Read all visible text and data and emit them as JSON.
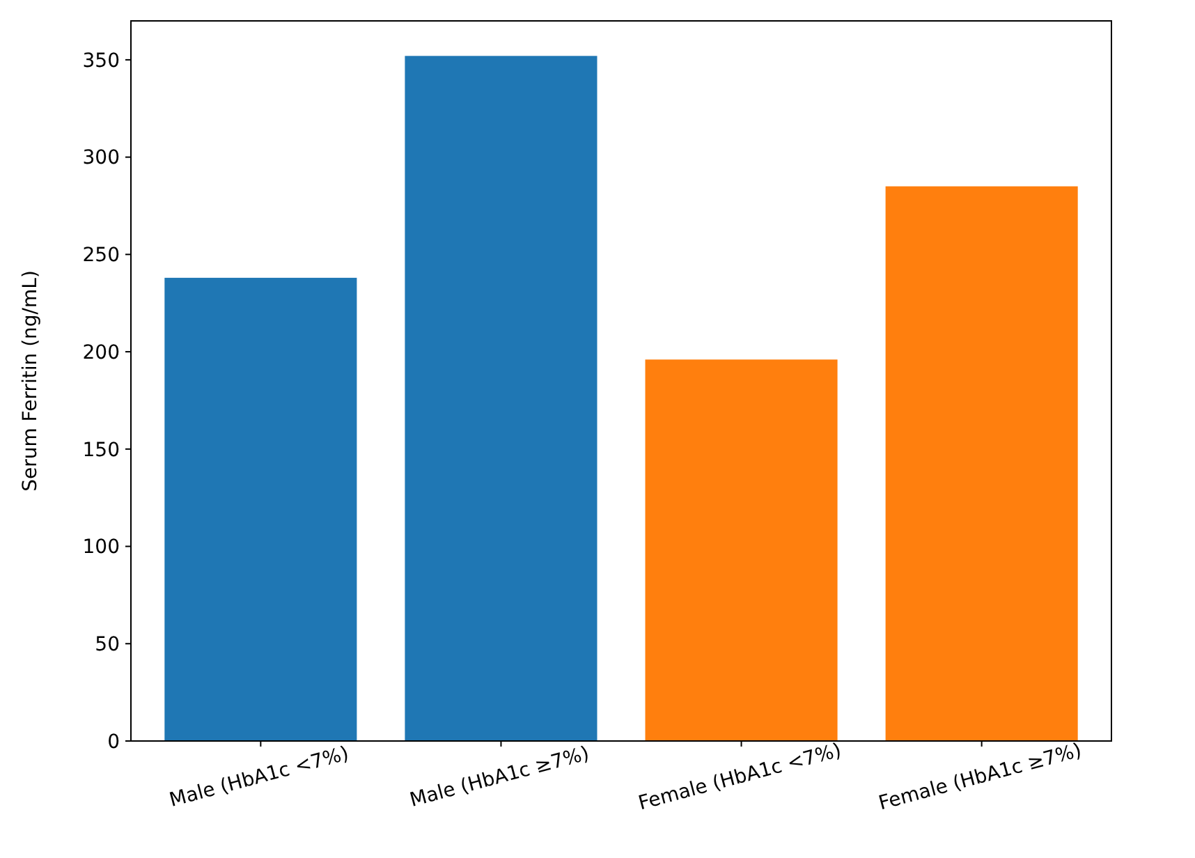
{
  "chart_data": {
    "type": "bar",
    "ylabel": "Serum Ferritin (ng/mL)",
    "categories": [
      "Male (HbA1c <7%)",
      "Male (HbA1c ≥7%)",
      "Female (HbA1c <7%)",
      "Female (HbA1c ≥7%)"
    ],
    "values": [
      238,
      352,
      196,
      285
    ],
    "colors": [
      "#1f77b4",
      "#1f77b4",
      "#ff7f0e",
      "#ff7f0e"
    ],
    "ylim": [
      0,
      370
    ],
    "yticks": [
      0,
      50,
      100,
      150,
      200,
      250,
      300,
      350
    ],
    "grid": false
  }
}
